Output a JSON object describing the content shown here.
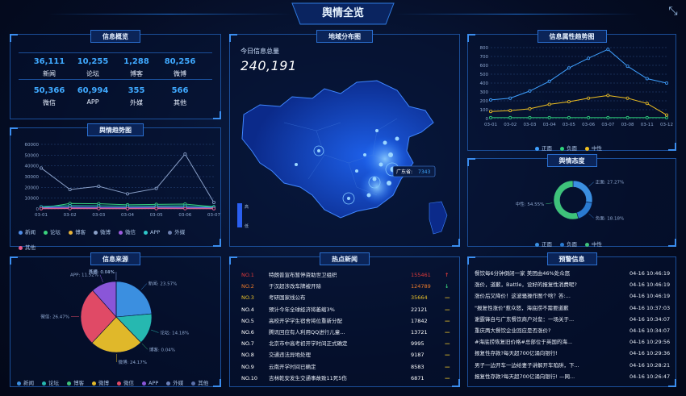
{
  "title": "舆情全览",
  "panels": {
    "overview": "信息概览",
    "trend": "舆情趋势图",
    "source": "信息来源",
    "map": "地域分布图",
    "hotnews": "热点新闻",
    "attr": "信息属性趋势图",
    "attitude": "舆情态度",
    "warning": "预警信息"
  },
  "overview": [
    {
      "value": "36,111",
      "label": "新闻"
    },
    {
      "value": "10,255",
      "label": "论坛"
    },
    {
      "value": "1,288",
      "label": "博客"
    },
    {
      "value": "80,256",
      "label": "微博"
    },
    {
      "value": "50,366",
      "label": "微信"
    },
    {
      "value": "60,994",
      "label": "APP"
    },
    {
      "value": "355",
      "label": "外媒"
    },
    {
      "value": "566",
      "label": "其他"
    }
  ],
  "map": {
    "today_label": "今日信息总量",
    "today_total": "240,191",
    "tooltip_name": "广东省:",
    "tooltip_value": "7343",
    "scale_high": "高",
    "scale_low": "低"
  },
  "trend_chart": {
    "type": "line",
    "categories": [
      "03-01",
      "03-02",
      "03-03",
      "03-04",
      "03-05",
      "03-06",
      "03-07"
    ],
    "yticks": [
      "60000",
      "50000",
      "40000",
      "30000",
      "20000",
      "10000",
      "0"
    ],
    "ylim": [
      0,
      60000
    ],
    "series": [
      {
        "name": "新闻",
        "color": "#4f8de8",
        "values": [
          1200,
          1500,
          1300,
          1200,
          1400,
          1300,
          1000
        ]
      },
      {
        "name": "论坛",
        "color": "#3ad37d",
        "values": [
          800,
          5000,
          4800,
          3800,
          4200,
          4500,
          2000
        ]
      },
      {
        "name": "博客",
        "color": "#e8b33a",
        "values": [
          500,
          600,
          700,
          500,
          600,
          700,
          400
        ]
      },
      {
        "name": "微博",
        "color": "#8aa0c8",
        "values": [
          38000,
          18000,
          21000,
          14000,
          19000,
          51000,
          6000
        ]
      },
      {
        "name": "微信",
        "color": "#9d5ce0",
        "values": [
          1000,
          1200,
          1100,
          1000,
          1300,
          1100,
          900
        ]
      },
      {
        "name": "APP",
        "color": "#2ec7c9",
        "values": [
          2000,
          3000,
          2800,
          2500,
          2600,
          2700,
          1500
        ]
      },
      {
        "name": "外媒",
        "color": "#6c7fb0",
        "values": [
          300,
          400,
          350,
          300,
          400,
          350,
          300
        ]
      },
      {
        "name": "其他",
        "color": "#e85a8a",
        "values": [
          200,
          300,
          250,
          200,
          300,
          250,
          200
        ]
      }
    ]
  },
  "source_chart": {
    "type": "pie",
    "slices": [
      {
        "name": "新闻",
        "label": "新闻: 23.57%",
        "value": 23.57,
        "color": "#3b8fe0"
      },
      {
        "name": "论坛",
        "label": "论坛: 14.18%",
        "value": 14.18,
        "color": "#26b8b0"
      },
      {
        "name": "博客",
        "label": "博客: 0.04%",
        "value": 0.04,
        "color": "#3ec27a"
      },
      {
        "name": "微博",
        "label": "微博: 24.17%",
        "value": 24.17,
        "color": "#e0b82a"
      },
      {
        "name": "微信",
        "label": "微信: 26.47%",
        "value": 26.47,
        "color": "#e04a66"
      },
      {
        "name": "APP",
        "label": "APP: 11.52%",
        "value": 11.52,
        "color": "#8a56d8"
      },
      {
        "name": "外媒",
        "label": "外媒: 0.04%",
        "value": 0.04,
        "color": "#6a7fb8"
      },
      {
        "name": "其他",
        "label": "其他: 0.01%",
        "value": 0.01,
        "color": "#5a6fa8"
      }
    ]
  },
  "hotnews": [
    {
      "no": "NO.1",
      "title": "特朗普宣布暂停资助世卫组织",
      "count": "155461",
      "trend": "up",
      "color": "#e23b3b"
    },
    {
      "no": "NO.2",
      "title": "于汉超涉改车牌被开除",
      "count": "124789",
      "trend": "down",
      "color": "#ee7a2a"
    },
    {
      "no": "NO.3",
      "title": "考研国家线公布",
      "count": "35664",
      "trend": "flat",
      "color": "#e8c02a"
    },
    {
      "no": "NO.4",
      "title": "预计今年全球经济将萎缩3%",
      "count": "22121",
      "trend": "flat",
      "color": "#ffffff"
    },
    {
      "no": "NO.5",
      "title": "高校开学学生宿舍将位重新分配",
      "count": "17842",
      "trend": "flat",
      "color": "#ffffff"
    },
    {
      "no": "NO.6",
      "title": "腾讯回应有人利用QQ进行儿童...",
      "count": "13721",
      "trend": "flat",
      "color": "#ffffff"
    },
    {
      "no": "NO.7",
      "title": "北京市中高考初开学时间正式确定",
      "count": "9995",
      "trend": "flat",
      "color": "#ffffff"
    },
    {
      "no": "NO.8",
      "title": "交通违法异地处理",
      "count": "9187",
      "trend": "flat",
      "color": "#ffffff"
    },
    {
      "no": "NO.9",
      "title": "云南开学时间已确定",
      "count": "8583",
      "trend": "flat",
      "color": "#ffffff"
    },
    {
      "no": "NO.10",
      "title": "吉林乾安发生交通事故致11死5伤",
      "count": "6871",
      "trend": "flat",
      "color": "#ffffff"
    }
  ],
  "attr_chart": {
    "type": "line",
    "categories": [
      "03-01",
      "03-02",
      "03-03",
      "03-04",
      "03-05",
      "03-06",
      "03-07",
      "03-08",
      "03-11",
      "03-12"
    ],
    "yticks": [
      "800",
      "700",
      "600",
      "500",
      "400",
      "300",
      "200",
      "100",
      "0"
    ],
    "ylim": [
      0,
      800
    ],
    "series": [
      {
        "name": "正面",
        "color": "#3fa0ff",
        "values": [
          210,
          230,
          310,
          420,
          570,
          680,
          780,
          590,
          450,
          400
        ]
      },
      {
        "name": "负面",
        "color": "#2ed27a",
        "values": [
          10,
          10,
          10,
          10,
          10,
          10,
          10,
          10,
          10,
          10
        ]
      },
      {
        "name": "中性",
        "color": "#f0c020",
        "values": [
          80,
          90,
          110,
          160,
          190,
          230,
          260,
          230,
          170,
          40
        ]
      }
    ]
  },
  "attitude_chart": {
    "type": "pie",
    "slices": [
      {
        "name": "正面",
        "label": "正面: 27.27%",
        "value": 27.27,
        "color": "#3b8fe0"
      },
      {
        "name": "负面",
        "label": "负面: 18.18%",
        "value": 18.18,
        "color": "#2a7ad0"
      },
      {
        "name": "中性",
        "label": "中性: 54.55%",
        "value": 54.55,
        "color": "#3ec27a"
      }
    ]
  },
  "warnings": [
    {
      "title": "餐饮每6分钟倒闭一家 美团由46%处众怒",
      "time": "04-16 10:46:19"
    },
    {
      "title": "涨价，道歉，Battle，设好的报复性消费呢?",
      "time": "04-16 10:46:19"
    },
    {
      "title": "涨价后又降价！这波骚操作图个啥？答:...",
      "time": "04-16 10:46:19"
    },
    {
      "title": "\"报复性涨价\"惹众怒，海底捞不需要道歉",
      "time": "04-16 10:37:03"
    },
    {
      "title": "谢霆锋自与广东餐饮商户对垒：一场关于...",
      "time": "04-16 10:34:07"
    },
    {
      "title": "重庆两大餐饮企业回应是否涨价?",
      "time": "04-16 10:34:07"
    },
    {
      "title": "#海底捞恢复旧价格#总部位于英国的海...",
      "time": "04-16 10:29:56"
    },
    {
      "title": "报复性存款?每天超700亿涌向银行!",
      "time": "04-16 10:29:36"
    },
    {
      "title": "男子一边开车一边给妻子讲解开车陷阱，下...",
      "time": "04-16 10:28:21"
    },
    {
      "title": "报复性存款?每天超700亿涌向银行! —网...",
      "time": "04-16 10:26:47"
    }
  ]
}
